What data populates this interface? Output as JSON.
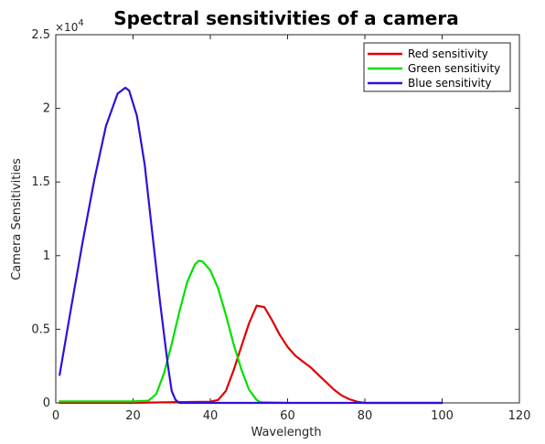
{
  "chart_data": {
    "type": "line",
    "title": "Spectral sensitivities of a camera",
    "xlabel": "Wavelength",
    "ylabel": "Camera Sensitivities",
    "y_exponent_base": "×10",
    "y_exponent_power": "4",
    "xlim": [
      0,
      120
    ],
    "ylim": [
      0,
      25000
    ],
    "xticks": [
      0,
      20,
      40,
      60,
      80,
      100,
      120
    ],
    "xtick_labels": [
      "0",
      "20",
      "40",
      "60",
      "80",
      "100",
      "120"
    ],
    "yticks": [
      0,
      5000,
      10000,
      15000,
      20000,
      25000
    ],
    "ytick_labels": [
      "0",
      "0.5",
      "1",
      "1.5",
      "2",
      "2.5"
    ],
    "grid": false,
    "legend_position": "top-right",
    "series": [
      {
        "name": "Red sensitivity",
        "color": "#e00000",
        "x": [
          1,
          20,
          30,
          40,
          42,
          44,
          46,
          48,
          50,
          52,
          54,
          56,
          58,
          60,
          62,
          64,
          66,
          68,
          70,
          72,
          74,
          76,
          78,
          80,
          100
        ],
        "y": [
          0,
          0,
          50,
          80,
          200,
          800,
          2200,
          3800,
          5400,
          6600,
          6500,
          5600,
          4600,
          3800,
          3200,
          2800,
          2400,
          1900,
          1400,
          900,
          500,
          250,
          80,
          0,
          0
        ]
      },
      {
        "name": "Green sensitivity",
        "color": "#00e000",
        "x": [
          1,
          20,
          24,
          26,
          28,
          30,
          32,
          34,
          36,
          37,
          38,
          40,
          42,
          44,
          46,
          48,
          50,
          52,
          53,
          60
        ],
        "y": [
          100,
          100,
          150,
          600,
          2000,
          4000,
          6200,
          8200,
          9400,
          9650,
          9600,
          9000,
          7800,
          6000,
          4000,
          2300,
          900,
          200,
          50,
          0
        ]
      },
      {
        "name": "Blue sensitivity",
        "color": "#3010d8",
        "x": [
          1,
          4,
          7,
          10,
          13,
          16,
          18,
          19,
          21,
          23,
          25,
          27,
          29,
          30,
          31,
          32,
          40,
          60,
          80,
          100
        ],
        "y": [
          1900,
          6500,
          11000,
          15200,
          18800,
          21000,
          21400,
          21200,
          19500,
          16200,
          11500,
          6800,
          2600,
          800,
          200,
          0,
          0,
          0,
          0,
          0
        ]
      }
    ]
  }
}
